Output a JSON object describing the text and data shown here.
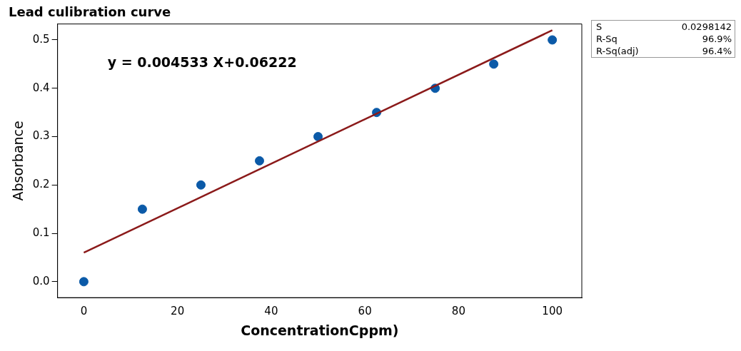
{
  "chart_data": {
    "type": "scatter",
    "title": "Lead culibration curve",
    "xlabel": "ConcentrationCppm)",
    "ylabel": "Absorbance",
    "xlim": [
      -5.6,
      106.3
    ],
    "xticks": [
      0,
      20,
      40,
      60,
      80,
      100
    ],
    "ylim": [
      -0.033,
      0.533
    ],
    "yticks": [
      {
        "value": 0,
        "label": "0.0"
      },
      {
        "value": 0.1,
        "label": "0.1"
      },
      {
        "value": 0.2,
        "label": "0.2"
      },
      {
        "value": 0.3,
        "label": "0.3"
      },
      {
        "value": 0.4,
        "label": "0.4"
      },
      {
        "value": 0.5,
        "label": "0.5"
      }
    ],
    "grid": false,
    "legend": false,
    "series": [
      {
        "type": "scatter",
        "marker": "circle",
        "color": "#0b5aa8",
        "x": [
          0,
          12.5,
          25,
          37.5,
          50,
          62.5,
          75,
          87.5,
          100
        ],
        "values": [
          0,
          0.15,
          0.2,
          0.25,
          0.3,
          0.35,
          0.4,
          0.45,
          0.5
        ]
      },
      {
        "type": "line",
        "color": "#8b1a1a",
        "x": [
          0,
          100
        ],
        "values": [
          0.06,
          0.52
        ],
        "marker": "none",
        "line_style": "solid"
      }
    ],
    "annotations": [
      "y = 0.004533 X+0.06222",
      "S",
      "0.0298142",
      "R-Sq",
      "96.9%",
      "R-Sq(adj)",
      "96.4%"
    ]
  }
}
